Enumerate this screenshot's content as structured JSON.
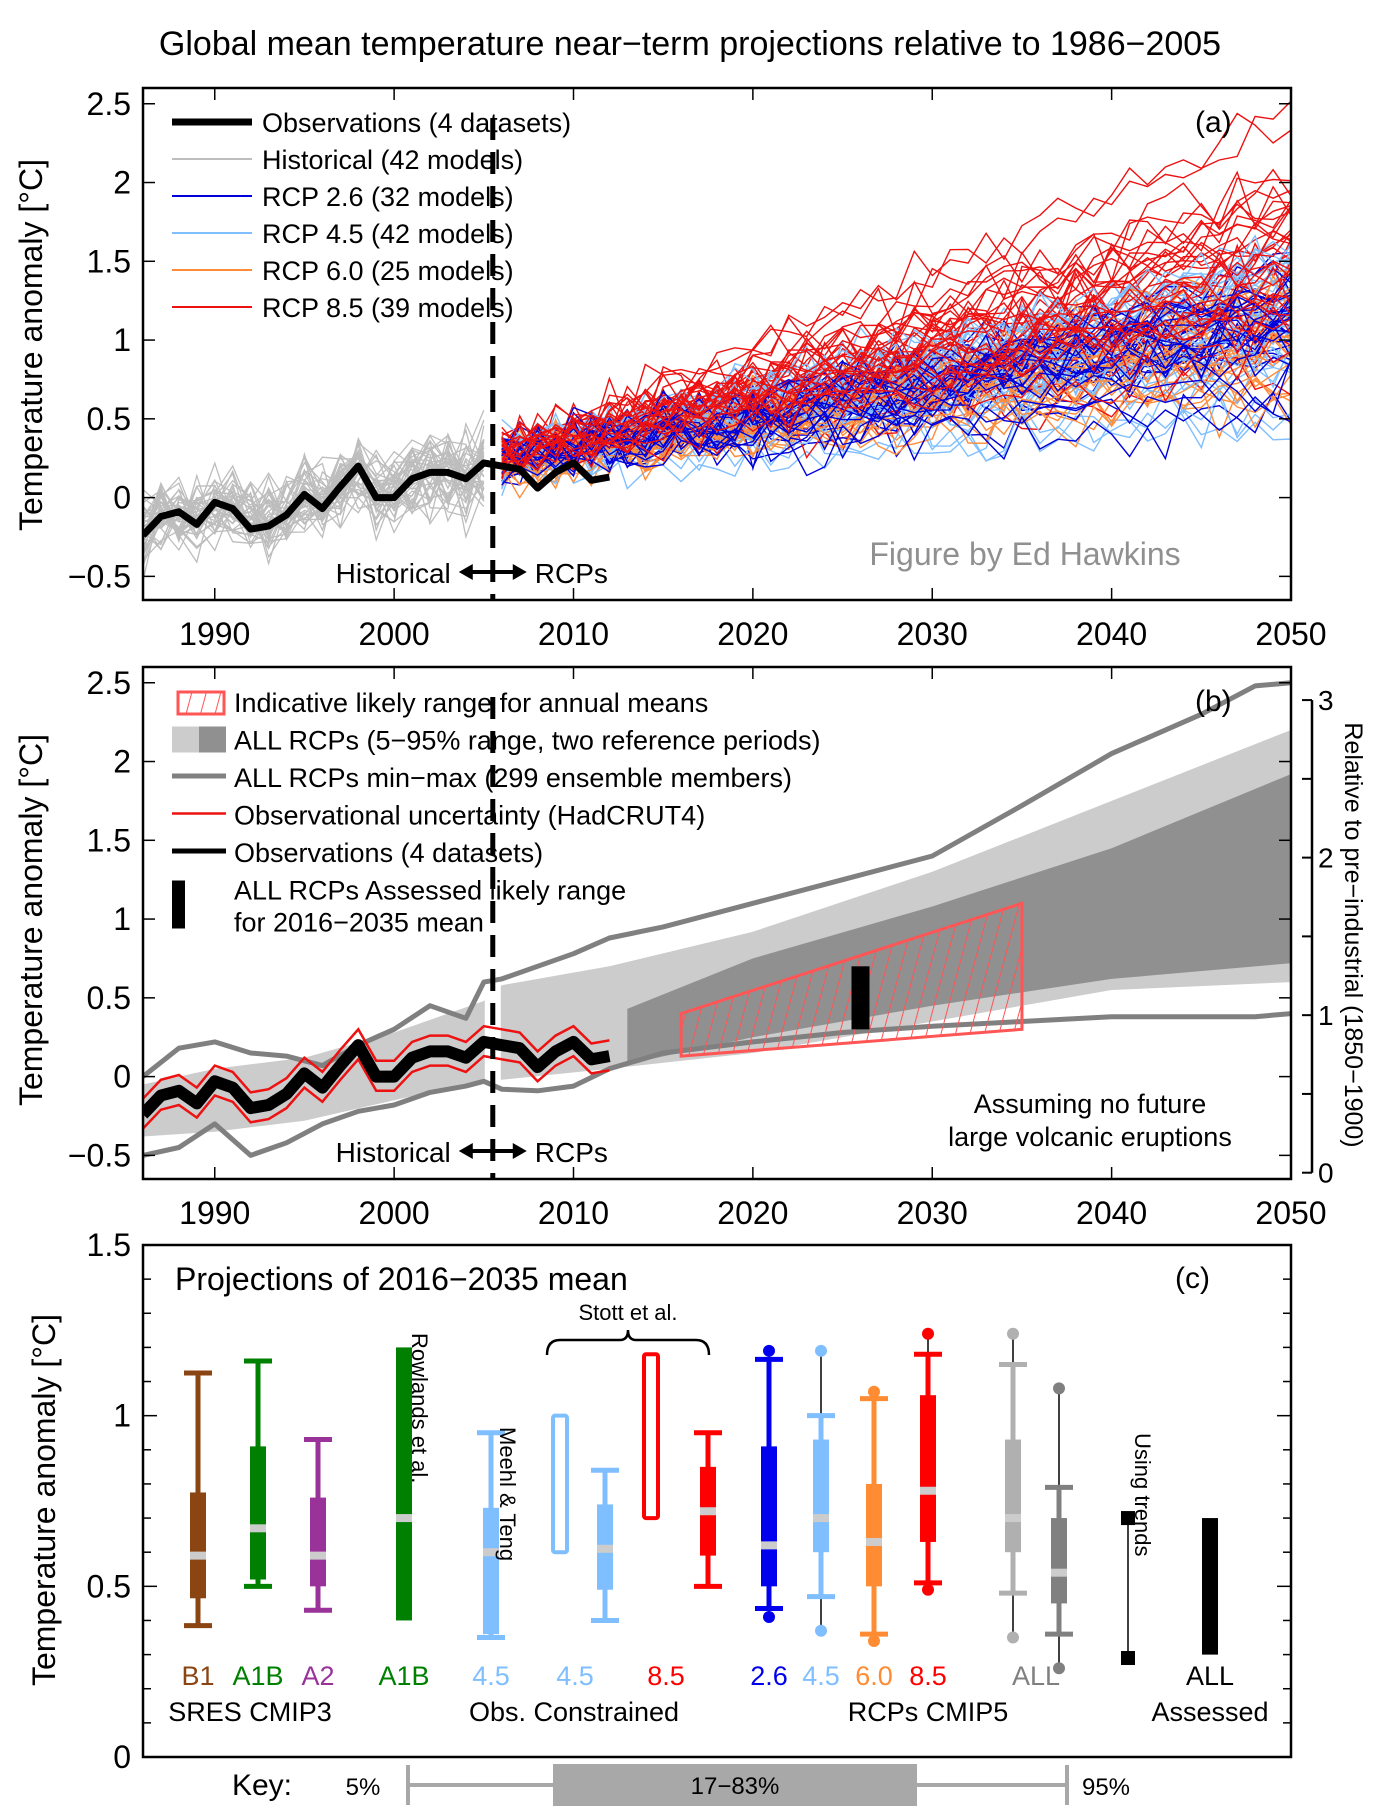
{
  "title": "Global mean temperature near−term projections relative to 1986−2005",
  "credit": "Figure by Ed Hawkins",
  "chart_data": [
    {
      "panel": "(a)",
      "type": "line",
      "ylabel": "Temperature anomaly  [°C]",
      "xlim": [
        1986,
        2050
      ],
      "ylim": [
        -0.65,
        2.6
      ],
      "xticks": [
        1990,
        2000,
        2010,
        2020,
        2030,
        2040,
        2050
      ],
      "yticks": [
        -0.5,
        0,
        0.5,
        1,
        1.5,
        2,
        2.5
      ],
      "ytick_labels": [
        "−0.5",
        "0",
        "0.5",
        "1",
        "1.5",
        "2",
        "2.5"
      ],
      "divider_year": 2005.5,
      "annotation_left": "Historical",
      "annotation_right": "RCPs",
      "legend_position": "top-left",
      "legend": [
        {
          "label": "Observations (4 datasets)",
          "color": "#000000",
          "kind": "thick-line"
        },
        {
          "label": "Historical (42 models)",
          "color": "#bdbdbd",
          "kind": "line"
        },
        {
          "label": "RCP 2.6 (32 models)",
          "color": "#0000dd",
          "kind": "line"
        },
        {
          "label": "RCP 4.5 (42 models)",
          "color": "#7fbfff",
          "kind": "line"
        },
        {
          "label": "RCP 6.0 (25 models)",
          "color": "#ff8c3a",
          "kind": "line"
        },
        {
          "label": "RCP 8.5 (39 models)",
          "color": "#ee1111",
          "kind": "line"
        }
      ],
      "observations": {
        "x": [
          1986,
          1987,
          1988,
          1989,
          1990,
          1991,
          1992,
          1993,
          1994,
          1995,
          1996,
          1997,
          1998,
          1999,
          2000,
          2001,
          2002,
          2003,
          2004,
          2005,
          2006,
          2007,
          2008,
          2009,
          2010,
          2011,
          2012
        ],
        "y": [
          -0.24,
          -0.12,
          -0.09,
          -0.17,
          -0.03,
          -0.07,
          -0.2,
          -0.18,
          -0.11,
          0.02,
          -0.07,
          0.07,
          0.2,
          0.0,
          0.0,
          0.12,
          0.16,
          0.16,
          0.12,
          0.22,
          0.2,
          0.18,
          0.06,
          0.16,
          0.22,
          0.11,
          0.13
        ]
      },
      "historical_envelope": {
        "x": [
          1986,
          1990,
          1995,
          2000,
          2005
        ],
        "y_low": [
          -0.42,
          -0.32,
          -0.25,
          -0.14,
          -0.08
        ],
        "y_high": [
          0.05,
          0.12,
          0.22,
          0.36,
          0.58
        ]
      },
      "scenarios": [
        {
          "name": "RCP 2.6",
          "color": "#0000dd",
          "y2012": 0.25,
          "y2050_low": 0.6,
          "y2050_mid": 1.05,
          "y2050_high": 1.6
        },
        {
          "name": "RCP 4.5",
          "color": "#7fbfff",
          "y2012": 0.25,
          "y2050_low": 0.65,
          "y2050_mid": 1.15,
          "y2050_high": 1.75
        },
        {
          "name": "RCP 6.0",
          "color": "#ff8c3a",
          "y2012": 0.22,
          "y2050_low": 0.55,
          "y2050_mid": 1.0,
          "y2050_high": 1.55
        },
        {
          "name": "RCP 8.5",
          "color": "#ee1111",
          "y2012": 0.28,
          "y2050_low": 1.0,
          "y2050_mid": 1.6,
          "y2050_high": 2.5
        }
      ]
    },
    {
      "panel": "(b)",
      "type": "area",
      "ylabel": "Temperature anomaly  [°C]",
      "y2label": "Relative to pre−industrial (1850−1900)",
      "xlim": [
        1986,
        2050
      ],
      "ylim": [
        -0.65,
        2.6
      ],
      "xticks": [
        1990,
        2000,
        2010,
        2020,
        2030,
        2040,
        2050
      ],
      "yticks": [
        -0.5,
        0,
        0.5,
        1,
        1.5,
        2,
        2.5
      ],
      "ytick_labels": [
        "−0.5",
        "0",
        "0.5",
        "1",
        "1.5",
        "2",
        "2.5"
      ],
      "y2ticks": [
        0,
        1,
        2,
        3
      ],
      "y2_offset": 0.61,
      "divider_year": 2005.5,
      "annotation_left": "Historical",
      "annotation_right": "RCPs",
      "note_lines": [
        "Assuming no future",
        "large volcanic eruptions"
      ],
      "legend_position": "top-left",
      "legend": [
        {
          "label": "Indicative likely range for annual means",
          "kind": "hatch",
          "color": "#ff5555"
        },
        {
          "label": "ALL RCPs (5−95% range, two reference periods)",
          "kind": "two-patch",
          "color": "#cccccc",
          "color2": "#909090"
        },
        {
          "label": "ALL RCPs min−max (299 ensemble members)",
          "kind": "thick-line",
          "color": "#808080"
        },
        {
          "label": "Observational uncertainty (HadCRUT4)",
          "kind": "line",
          "color": "#ee1111"
        },
        {
          "label": "Observations (4 datasets)",
          "kind": "thick-line",
          "color": "#000000"
        },
        {
          "label": "ALL RCPs Assessed likely range\nfor 2016−2035 mean",
          "kind": "bar",
          "color": "#000000"
        }
      ],
      "minmax": {
        "x": [
          1986,
          1988,
          1990,
          1992,
          1994,
          1996,
          1998,
          2000,
          2002,
          2004,
          2005,
          2006,
          2008,
          2010,
          2012,
          2015,
          2020,
          2025,
          2030,
          2035,
          2040,
          2045,
          2048,
          2050
        ],
        "y_max": [
          0.0,
          0.18,
          0.22,
          0.15,
          0.13,
          0.07,
          0.2,
          0.3,
          0.45,
          0.37,
          0.6,
          0.62,
          0.7,
          0.78,
          0.88,
          0.95,
          1.1,
          1.25,
          1.4,
          1.72,
          2.05,
          2.3,
          2.48,
          2.5
        ],
        "y_min": [
          -0.5,
          -0.45,
          -0.3,
          -0.5,
          -0.42,
          -0.3,
          -0.22,
          -0.18,
          -0.1,
          -0.06,
          -0.03,
          -0.08,
          -0.09,
          -0.06,
          0.05,
          0.15,
          0.22,
          0.28,
          0.32,
          0.35,
          0.38,
          0.38,
          0.38,
          0.4
        ]
      },
      "range_light": {
        "x": [
          1986,
          1990,
          1995,
          2000,
          2005,
          2006,
          2012,
          2020,
          2030,
          2040,
          2050
        ],
        "y_low": [
          -0.38,
          -0.35,
          -0.28,
          -0.15,
          -0.02,
          -0.02,
          0.05,
          0.15,
          0.35,
          0.55,
          0.6
        ],
        "y_high": [
          -0.05,
          0.05,
          0.12,
          0.28,
          0.48,
          0.58,
          0.7,
          0.92,
          1.3,
          1.75,
          2.2
        ]
      },
      "range_dark": {
        "x": [
          2013,
          2020,
          2030,
          2040,
          2050
        ],
        "y_low": [
          0.08,
          0.25,
          0.45,
          0.62,
          0.72
        ],
        "y_high": [
          0.43,
          0.75,
          1.08,
          1.45,
          1.92
        ]
      },
      "observations": {
        "x": [
          1986,
          1987,
          1988,
          1989,
          1990,
          1991,
          1992,
          1993,
          1994,
          1995,
          1996,
          1997,
          1998,
          1999,
          2000,
          2001,
          2002,
          2003,
          2004,
          2005,
          2006,
          2007,
          2008,
          2009,
          2010,
          2011,
          2012
        ],
        "y": [
          -0.24,
          -0.12,
          -0.09,
          -0.17,
          -0.03,
          -0.07,
          -0.2,
          -0.18,
          -0.11,
          0.02,
          -0.07,
          0.07,
          0.2,
          0.0,
          0.0,
          0.12,
          0.16,
          0.16,
          0.12,
          0.22,
          0.2,
          0.18,
          0.06,
          0.16,
          0.22,
          0.11,
          0.13
        ],
        "uncertainty": 0.1
      },
      "indicative_range": {
        "x": [
          2016,
          2035
        ],
        "y_low": [
          0.13,
          0.3
        ],
        "y_high": [
          0.4,
          1.1
        ]
      },
      "assessed_range": {
        "x": 2026,
        "y_low": 0.3,
        "y_high": 0.7
      }
    },
    {
      "panel": "(c)",
      "type": "bar",
      "title": "Projections of 2016−2035 mean",
      "ylabel": "Temperature anomaly  [°C]",
      "ylim": [
        0,
        1.5
      ],
      "yticks": [
        0,
        0.5,
        1,
        1.5
      ],
      "ytick_labels": [
        "0",
        "0.5",
        "1",
        "1.5"
      ],
      "bracket_label": "Stott et al.",
      "group_labels": [
        "SRES CMIP3",
        "Obs. Constrained",
        "RCPs CMIP5",
        "Assessed"
      ],
      "vertical_labels": [
        "Rowlands et al.",
        "Meehl & Teng",
        "Using trends"
      ],
      "boxes": [
        {
          "label": "B1",
          "color": "#8b4513",
          "p5": 0.385,
          "p17": 0.465,
          "median": 0.59,
          "p83": 0.775,
          "p95": 1.125,
          "style": "box"
        },
        {
          "label": "A1B",
          "color": "#008000",
          "p5": 0.5,
          "p17": 0.52,
          "median": 0.67,
          "p83": 0.91,
          "p95": 1.16,
          "style": "box"
        },
        {
          "label": "A2",
          "color": "#993399",
          "p5": 0.43,
          "p17": 0.5,
          "median": 0.59,
          "p83": 0.76,
          "p95": 0.93,
          "style": "box"
        },
        {
          "label": "A1B",
          "color": "#008000",
          "p5": null,
          "p17": 0.4,
          "median": 0.7,
          "p83": 1.2,
          "p95": null,
          "style": "bar"
        },
        {
          "label": "4.5",
          "color": "#80bfff",
          "p5": 0.35,
          "p17": 0.36,
          "median": 0.6,
          "p83": 0.73,
          "p95": 0.95,
          "style": "box"
        },
        {
          "label": "4.5",
          "color": "#80bfff",
          "p5": null,
          "p17": 0.6,
          "median": null,
          "p83": 1.0,
          "p95": null,
          "style": "outline"
        },
        {
          "label": "",
          "color": "#80bfff",
          "p5": 0.4,
          "p17": 0.49,
          "median": 0.61,
          "p83": 0.74,
          "p95": 0.84,
          "style": "box"
        },
        {
          "label": "8.5",
          "color": "#ff0000",
          "p5": null,
          "p17": 0.7,
          "median": null,
          "p83": 1.18,
          "p95": null,
          "style": "outline"
        },
        {
          "label": "",
          "color": "#ff0000",
          "p5": 0.5,
          "p17": 0.59,
          "median": 0.72,
          "p83": 0.85,
          "p95": 0.95,
          "style": "box"
        },
        {
          "label": "2.6",
          "color": "#0000ee",
          "min": 0.41,
          "p5": 0.435,
          "p17": 0.5,
          "median": 0.62,
          "p83": 0.91,
          "p95": 1.165,
          "max": 1.19,
          "style": "box"
        },
        {
          "label": "4.5",
          "color": "#80bfff",
          "min": 0.37,
          "p5": 0.47,
          "p17": 0.6,
          "median": 0.7,
          "p83": 0.93,
          "p95": 1.0,
          "max": 1.19,
          "style": "box"
        },
        {
          "label": "6.0",
          "color": "#ff8c33",
          "min": 0.34,
          "p5": 0.36,
          "p17": 0.5,
          "median": 0.63,
          "p83": 0.8,
          "p95": 1.05,
          "max": 1.07,
          "style": "box"
        },
        {
          "label": "8.5",
          "color": "#ff0000",
          "min": 0.49,
          "p5": 0.51,
          "p17": 0.63,
          "median": 0.78,
          "p83": 1.06,
          "p95": 1.18,
          "max": 1.24,
          "style": "box"
        },
        {
          "label": "ALL",
          "color": "#b0b0b0",
          "min": 0.35,
          "p5": 0.48,
          "p17": 0.6,
          "median": 0.7,
          "p83": 0.93,
          "p95": 1.15,
          "max": 1.24,
          "style": "box"
        },
        {
          "label": "",
          "color": "#808080",
          "min": 0.26,
          "p5": 0.36,
          "p17": 0.45,
          "median": 0.54,
          "p83": 0.7,
          "p95": 0.79,
          "max": 1.08,
          "style": "box"
        },
        {
          "label": "",
          "color": "#000000",
          "p5": 0.29,
          "p95": 0.7,
          "style": "trends"
        },
        {
          "label": "ALL",
          "color": "#000000",
          "p17": 0.3,
          "p83": 0.7,
          "style": "bar"
        }
      ],
      "key": {
        "label": "Key:",
        "low": "5%",
        "mid": "17−83%",
        "high": "95%"
      }
    }
  ],
  "panel_labels": [
    "(a)",
    "(b)",
    "(c)"
  ],
  "tick_labels_x": [
    "1990",
    "2000",
    "2010",
    "2020",
    "2030",
    "2040",
    "2050"
  ]
}
